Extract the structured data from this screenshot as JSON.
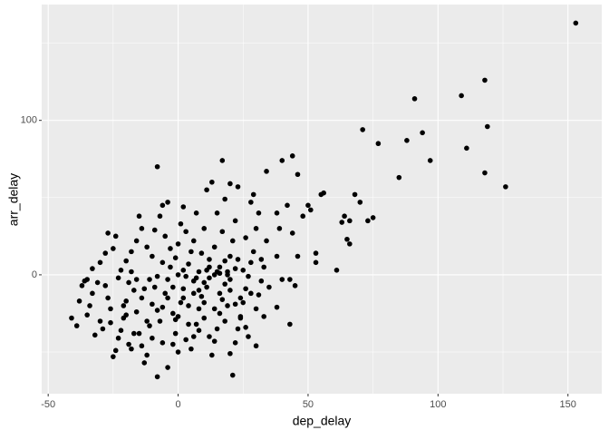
{
  "chart_data": {
    "type": "scatter",
    "x_label": "dep_delay",
    "y_label": "arr_delay",
    "color": "#000000",
    "panel_color": "#ebebeb",
    "grid": true,
    "xlim": [
      -52.5,
      163
    ],
    "ylim": [
      -77,
      175
    ],
    "xticks": [
      -50,
      0,
      50,
      100,
      150
    ],
    "yticks": [
      0,
      100
    ],
    "xminor": [
      -25,
      25,
      75,
      125
    ],
    "yminor": [
      -50,
      50,
      150
    ],
    "x": [
      153,
      109,
      118,
      91,
      119,
      94,
      71,
      97,
      111,
      118,
      126,
      85,
      77,
      88,
      68,
      70,
      66,
      73,
      75,
      64,
      63,
      65,
      66,
      61,
      56,
      55,
      51,
      50,
      48,
      46,
      53,
      53,
      44,
      40,
      46,
      34,
      42,
      38,
      39,
      44,
      38,
      45,
      43,
      40,
      35,
      38,
      43,
      33,
      30,
      -8,
      17,
      13,
      20,
      23,
      29,
      28,
      -4,
      -41,
      -39,
      -36,
      -37,
      -35,
      -33,
      -34,
      -32,
      -30,
      -28,
      -27,
      -26,
      -25,
      -24,
      -23,
      -22,
      -21,
      -20,
      -19,
      -18,
      -17,
      -16,
      -15,
      -14,
      -13,
      -12,
      -11,
      -10,
      -9,
      -8,
      -7,
      -6,
      -5,
      -4,
      -3,
      -2,
      -1,
      0,
      1,
      2,
      3,
      4,
      5,
      6,
      7,
      8,
      9,
      10,
      11,
      12,
      13,
      14,
      15,
      16,
      17,
      18,
      19,
      20,
      21,
      22,
      23,
      24,
      25,
      26,
      27,
      28,
      29,
      30,
      31,
      32,
      33,
      34,
      -33,
      -30,
      -28,
      -27,
      -25,
      -24,
      -22,
      -20,
      -18,
      -16,
      -15,
      -14,
      -12,
      -10,
      -9,
      -7,
      -6,
      -5,
      -3,
      -1,
      0,
      1,
      2,
      3,
      5,
      6,
      7,
      8,
      9,
      10,
      11,
      12,
      14,
      15,
      16,
      17,
      18,
      19,
      20,
      21,
      22,
      23,
      24,
      25,
      26,
      27,
      28,
      30,
      31,
      32,
      -21,
      -19,
      -17,
      -13,
      -11,
      -8,
      -6,
      -4,
      -2,
      0,
      2,
      4,
      6,
      8,
      10,
      12,
      14,
      16,
      18,
      20,
      22,
      24,
      26,
      -38,
      -35,
      -31,
      -29,
      -26,
      -23,
      -20,
      -18,
      -16,
      -14,
      -12,
      -10,
      -8,
      -6,
      -4,
      -2,
      0,
      2,
      4,
      6,
      8,
      10,
      12,
      14,
      16,
      18,
      20,
      22,
      -1,
      3,
      7,
      11,
      15,
      19
    ],
    "y": [
      163,
      116,
      126,
      114,
      96,
      92,
      94,
      74,
      82,
      66,
      57,
      63,
      85,
      87,
      52,
      47,
      35,
      35,
      37,
      38,
      34,
      23,
      20,
      3,
      53,
      52,
      42,
      45,
      38,
      12,
      8,
      14,
      77,
      74,
      65,
      67,
      45,
      40,
      30,
      27,
      12,
      -7,
      -3,
      -3,
      -8,
      -21,
      -32,
      -27,
      -46,
      70,
      74,
      60,
      59,
      57,
      52,
      47,
      47,
      -28,
      -33,
      -4,
      -7,
      -3,
      -12,
      -20,
      -39,
      -30,
      -7,
      -15,
      -31,
      -53,
      -49,
      -41,
      -36,
      -28,
      -17,
      -5,
      2,
      -10,
      -24,
      -38,
      -46,
      -57,
      -52,
      -33,
      -19,
      -8,
      -66,
      -30,
      -21,
      -12,
      -3,
      5,
      -45,
      -38,
      -27,
      -18,
      -9,
      -1,
      7,
      -48,
      -40,
      -32,
      -22,
      -14,
      -5,
      3,
      10,
      -52,
      -43,
      -35,
      -25,
      -16,
      -6,
      2,
      12,
      -65,
      -44,
      -35,
      -27,
      -18,
      -9,
      -1,
      8,
      15,
      -22,
      -13,
      -4,
      5,
      22,
      4,
      8,
      14,
      27,
      17,
      25,
      3,
      9,
      15,
      22,
      38,
      30,
      18,
      12,
      29,
      38,
      45,
      25,
      17,
      11,
      20,
      33,
      44,
      28,
      15,
      22,
      40,
      -10,
      14,
      30,
      55,
      -2,
      18,
      40,
      5,
      28,
      49,
      0,
      -3,
      22,
      35,
      10,
      -28,
      3,
      24,
      -40,
      -12,
      30,
      40,
      10,
      -20,
      -45,
      -38,
      -9,
      -3,
      -23,
      -44,
      -60,
      -8,
      -50,
      -15,
      -32,
      -4,
      2,
      -28,
      -40,
      0,
      -12,
      -30,
      -51,
      4,
      -15,
      -34,
      -17,
      -26,
      -5,
      -35,
      -22,
      -2,
      -26,
      -48,
      -3,
      -15,
      -30,
      -41,
      -1,
      8,
      -15,
      -25,
      0,
      3,
      -20,
      -12,
      -36,
      -18,
      5,
      -22,
      1,
      9,
      -10,
      -19,
      -29,
      -42,
      -2,
      -8,
      2,
      -20
    ]
  }
}
